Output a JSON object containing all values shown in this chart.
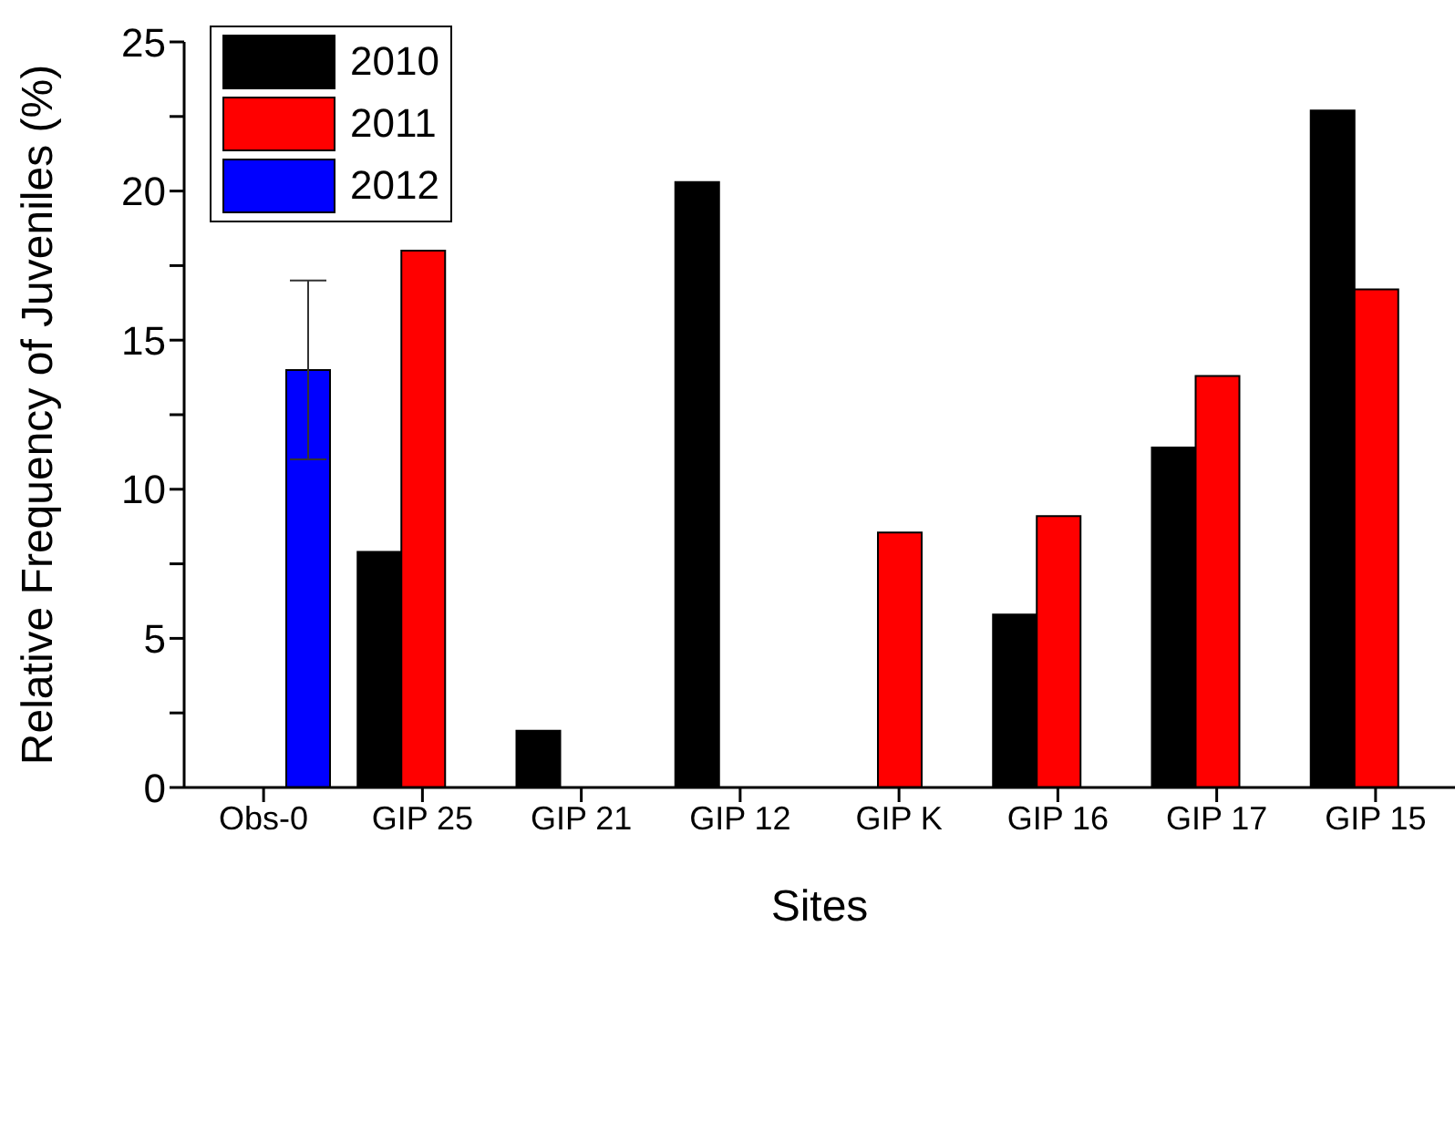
{
  "chart_data": {
    "type": "bar",
    "xlabel": "Sites",
    "ylabel": "Relative Frequency of Juveniles (%)",
    "categories": [
      "Obs-0",
      "GIP 25",
      "GIP 21",
      "GIP 12",
      "GIP K",
      "GIP 16",
      "GIP 17",
      "GIP 15"
    ],
    "series": [
      {
        "name": "2010",
        "color": "#000000",
        "values": [
          null,
          7.9,
          1.9,
          20.3,
          null,
          5.8,
          11.4,
          22.7
        ]
      },
      {
        "name": "2011",
        "color": "#ff0000",
        "values": [
          null,
          18.0,
          null,
          null,
          8.55,
          9.1,
          13.8,
          16.7
        ]
      },
      {
        "name": "2012",
        "color": "#0000ff",
        "values": [
          14.0,
          null,
          null,
          null,
          null,
          null,
          null,
          null
        ],
        "errors": [
          3,
          null,
          null,
          null,
          null,
          null,
          null,
          null
        ]
      }
    ],
    "ylim": [
      0,
      25
    ],
    "yticks": [
      0,
      {
        "value": 2.5,
        "label": null
      },
      5,
      {
        "value": 7.5,
        "label": null
      },
      10,
      {
        "value": 12.5,
        "label": null
      },
      15,
      {
        "value": 17.5,
        "label": null
      },
      20,
      {
        "value": 22.5,
        "label": null
      },
      25
    ],
    "grid": false,
    "legend": "top left"
  }
}
